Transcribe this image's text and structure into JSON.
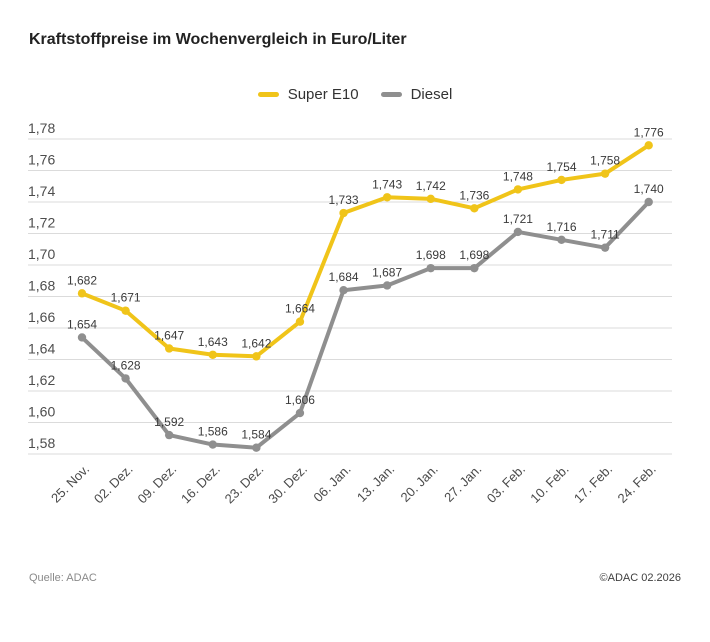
{
  "chart_data": {
    "type": "line",
    "title": "Kraftstoffpreise im Wochenvergleich in Euro/Liter",
    "categories": [
      "25. Nov.",
      "02. Dez.",
      "09. Dez.",
      "16. Dez.",
      "23. Dez.",
      "30. Dez.",
      "06. Jan.",
      "13. Jan.",
      "20. Jan.",
      "27. Jan.",
      "03. Feb.",
      "10. Feb.",
      "17. Feb.",
      "24. Feb."
    ],
    "series": [
      {
        "name": "Super E10",
        "color": "#F0C419",
        "values": [
          1.682,
          1.671,
          1.647,
          1.643,
          1.642,
          1.664,
          1.733,
          1.743,
          1.742,
          1.736,
          1.748,
          1.754,
          1.758,
          1.776
        ]
      },
      {
        "name": "Diesel",
        "color": "#8F8F8F",
        "values": [
          1.654,
          1.628,
          1.592,
          1.586,
          1.584,
          1.606,
          1.684,
          1.687,
          1.698,
          1.698,
          1.721,
          1.716,
          1.711,
          1.74
        ]
      }
    ],
    "ylim": [
      1.58,
      1.78
    ],
    "ytick_step": 0.02,
    "decimal_separator": ",",
    "grid": true,
    "legend_position": "top-center",
    "value_labels": true,
    "xlabel": "",
    "ylabel": ""
  },
  "footer": {
    "source": "Quelle: ADAC",
    "copyright": "©ADAC 02.2026"
  },
  "colors": {
    "grid": "#DBDBDB",
    "axis_text": "#4D4D4D",
    "xaxis_text": "#4A4A4A",
    "value_label_text": "#3A3A3A",
    "title_text": "#222222"
  }
}
